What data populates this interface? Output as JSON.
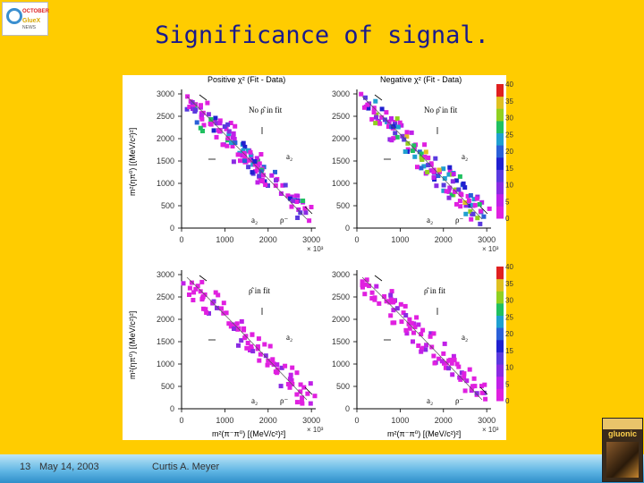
{
  "logo": {
    "line1": "OCTOBER",
    "line2": "GlueX",
    "line3": "NEWS"
  },
  "title": "Significance of signal.",
  "footer": {
    "slide_number": "13",
    "date": "May 14, 2003",
    "author": "Curtis A. Meyer"
  },
  "gluonic_badge": {
    "text": "gluonic"
  },
  "figure": {
    "top_headers": [
      "Positive χ² (Fit - Data)",
      "Negative χ² (Fit - Data)"
    ],
    "bottom_multiplier": "× 10³",
    "y_tick_labels": [
      "0",
      "500",
      "1000",
      "1500",
      "2000",
      "2500",
      "3000"
    ],
    "x_tick_labels": [
      "0",
      "1000",
      "2000",
      "3000"
    ],
    "colorbar_ticks": [
      "0",
      "5",
      "10",
      "15",
      "20",
      "25",
      "30",
      "35",
      "40"
    ],
    "ylabel": "m²(ηπ⁰)   [(MeV/c²)²]",
    "xlabel": "m²(π⁻π⁰)   [(MeV/c²)²]",
    "panels": [
      {
        "id": "top-left",
        "label": "No ρ̂ in fit",
        "side_label": "a₂",
        "annot_a2": "a₂",
        "annot_rho": "ρ⁻"
      },
      {
        "id": "top-right",
        "label": "No ρ̂ in fit",
        "side_label": "a₂",
        "annot_a2": "a₂",
        "annot_rho": "ρ⁻"
      },
      {
        "id": "bottom-left",
        "label": "ρ̂ in fit",
        "side_label": "a₂",
        "annot_a2": "a₂",
        "annot_rho": "ρ⁻"
      },
      {
        "id": "bottom-right",
        "label": "ρ̂ in fit",
        "side_label": "a₂",
        "annot_a2": "a₂",
        "annot_rho": "ρ⁻"
      }
    ]
  },
  "colors": {
    "background": "#FFCC00",
    "title": "#1a1a8c",
    "magenta": "#e020e0",
    "purple": "#8a2be2",
    "blue": "#2020d0",
    "green": "#20c020",
    "red": "#e02020"
  }
}
